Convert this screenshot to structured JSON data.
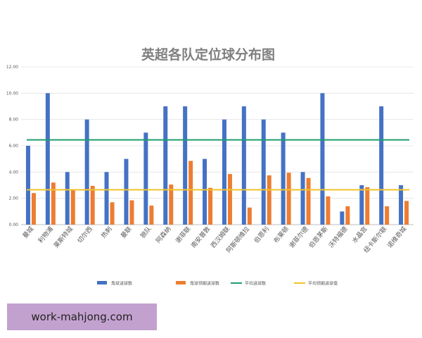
{
  "chart_data": {
    "type": "bar",
    "title": "英超各队定位球分布图",
    "categories": [
      "曼城",
      "利物浦",
      "莱斯特城",
      "切尔西",
      "热刺",
      "曼联",
      "狼队",
      "阿森纳",
      "谢菲联",
      "南安普敦",
      "西汉姆联",
      "阿斯顿维拉",
      "伯恩利",
      "布莱顿",
      "谢菲尔德",
      "伯恩茅斯",
      "沃特福德",
      "水晶宫",
      "纽卡斯尔联",
      "诺维奇城"
    ],
    "series": [
      {
        "name": "角球进球数",
        "values": [
          6,
          10,
          4,
          8,
          4,
          5,
          7,
          9,
          9,
          5,
          8,
          9,
          8,
          7,
          4,
          10,
          1,
          3,
          9,
          3
        ],
        "color": "#4472c4"
      },
      {
        "name": "角球预期进球数",
        "values": [
          2.4,
          3.2,
          2.7,
          2.95,
          1.7,
          1.85,
          1.45,
          3.05,
          4.85,
          2.8,
          3.85,
          1.3,
          3.75,
          3.95,
          3.55,
          2.15,
          1.4,
          2.85,
          1.4,
          1.8
        ],
        "color": "#ed7d31"
      }
    ],
    "reference_lines": [
      {
        "name": "平均进球数",
        "value": 6.45,
        "color": "#1f9e6e"
      },
      {
        "name": "平均预期进球值",
        "value": 2.65,
        "color": "#f2c22a"
      }
    ],
    "ylim": [
      0,
      12
    ],
    "yticks": [
      "0.00",
      "2.00",
      "4.00",
      "6.00",
      "8.00",
      "10.00",
      "12.00"
    ],
    "legend_position": "bottom",
    "grid": true
  },
  "watermark": "work-mahjong.com"
}
